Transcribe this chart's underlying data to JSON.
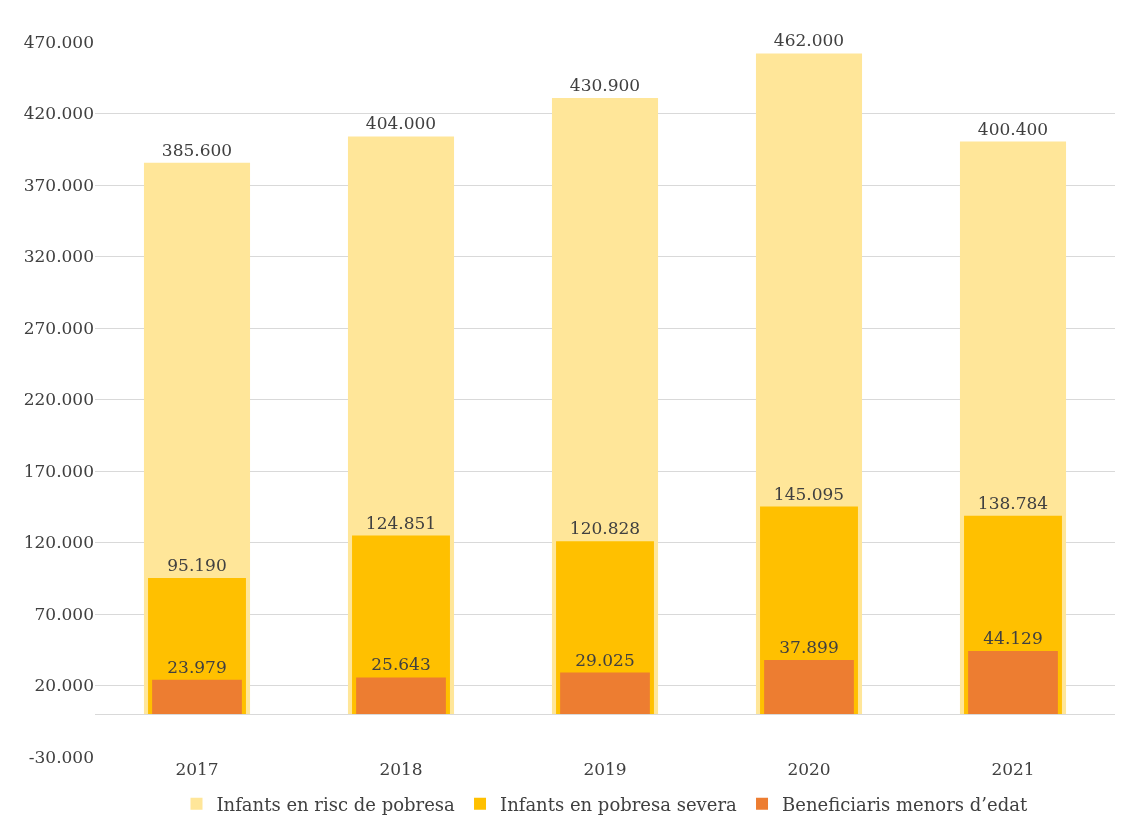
{
  "chart_data": {
    "type": "bar",
    "categories": [
      "2017",
      "2018",
      "2019",
      "2020",
      "2021"
    ],
    "series": [
      {
        "name": "Infants en risc de pobresa",
        "color": "#ffe699",
        "values": [
          385600,
          404000,
          430900,
          462000,
          400400
        ],
        "value_labels": [
          "385.600",
          "404.000",
          "430.900",
          "462.000",
          "400.400"
        ]
      },
      {
        "name": "Infants en pobresa severa",
        "color": "#ffc000",
        "values": [
          95190,
          124851,
          120828,
          145095,
          138784
        ],
        "value_labels": [
          "95.190",
          "124.851",
          "120.828",
          "145.095",
          "138.784"
        ]
      },
      {
        "name": "Beneficiaris menors d’edat",
        "color": "#ed7d31",
        "values": [
          23979,
          25643,
          29025,
          37899,
          44129
        ],
        "value_labels": [
          "23.979",
          "25.643",
          "29.025",
          "37.899",
          "44.129"
        ]
      }
    ],
    "ylim": [
      -30000,
      470000
    ],
    "yticks": [
      {
        "value": -30000,
        "label": "-30.000"
      },
      {
        "value": 20000,
        "label": "20.000"
      },
      {
        "value": 70000,
        "label": "70.000"
      },
      {
        "value": 120000,
        "label": "120.000"
      },
      {
        "value": 170000,
        "label": "170.000"
      },
      {
        "value": 220000,
        "label": "220.000"
      },
      {
        "value": 270000,
        "label": "270.000"
      },
      {
        "value": 320000,
        "label": "320.000"
      },
      {
        "value": 370000,
        "label": "370.000"
      },
      {
        "value": 420000,
        "label": "420.000"
      },
      {
        "value": 470000,
        "label": "470.000"
      }
    ],
    "grid": "y",
    "legend": "bottom"
  }
}
